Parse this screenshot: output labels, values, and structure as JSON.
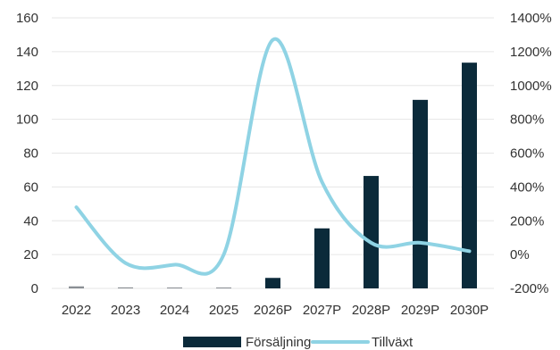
{
  "chart_data": {
    "type": "bar",
    "categories": [
      "2022",
      "2023",
      "2024",
      "2025",
      "2026P",
      "2027P",
      "2028P",
      "2029P",
      "2030P"
    ],
    "series": [
      {
        "name": "Försäljning",
        "kind": "bar",
        "axis": "left",
        "color": "#0b2a3a",
        "values": [
          1.2,
          0.6,
          0.2,
          0.2,
          6.2,
          35.5,
          66.5,
          111.5,
          133.5
        ]
      },
      {
        "name": "Tillväxt",
        "kind": "line",
        "axis": "right",
        "color": "#8fd3e4",
        "smooth": true,
        "values": [
          2.8,
          -0.5,
          -0.6,
          0.0,
          12.7,
          4.3,
          0.7,
          0.7,
          0.2
        ]
      }
    ],
    "y_left": {
      "min": 0,
      "max": 160,
      "ticks": [
        "0",
        "20",
        "40",
        "60",
        "80",
        "100",
        "120",
        "140",
        "160"
      ]
    },
    "y_right": {
      "min": -2,
      "max": 14,
      "ticks": [
        "-200%",
        "0%",
        "200%",
        "400%",
        "600%",
        "800%",
        "1000%",
        "1200%",
        "1400%"
      ]
    },
    "grid": true,
    "legend": {
      "position": "bottom"
    }
  }
}
